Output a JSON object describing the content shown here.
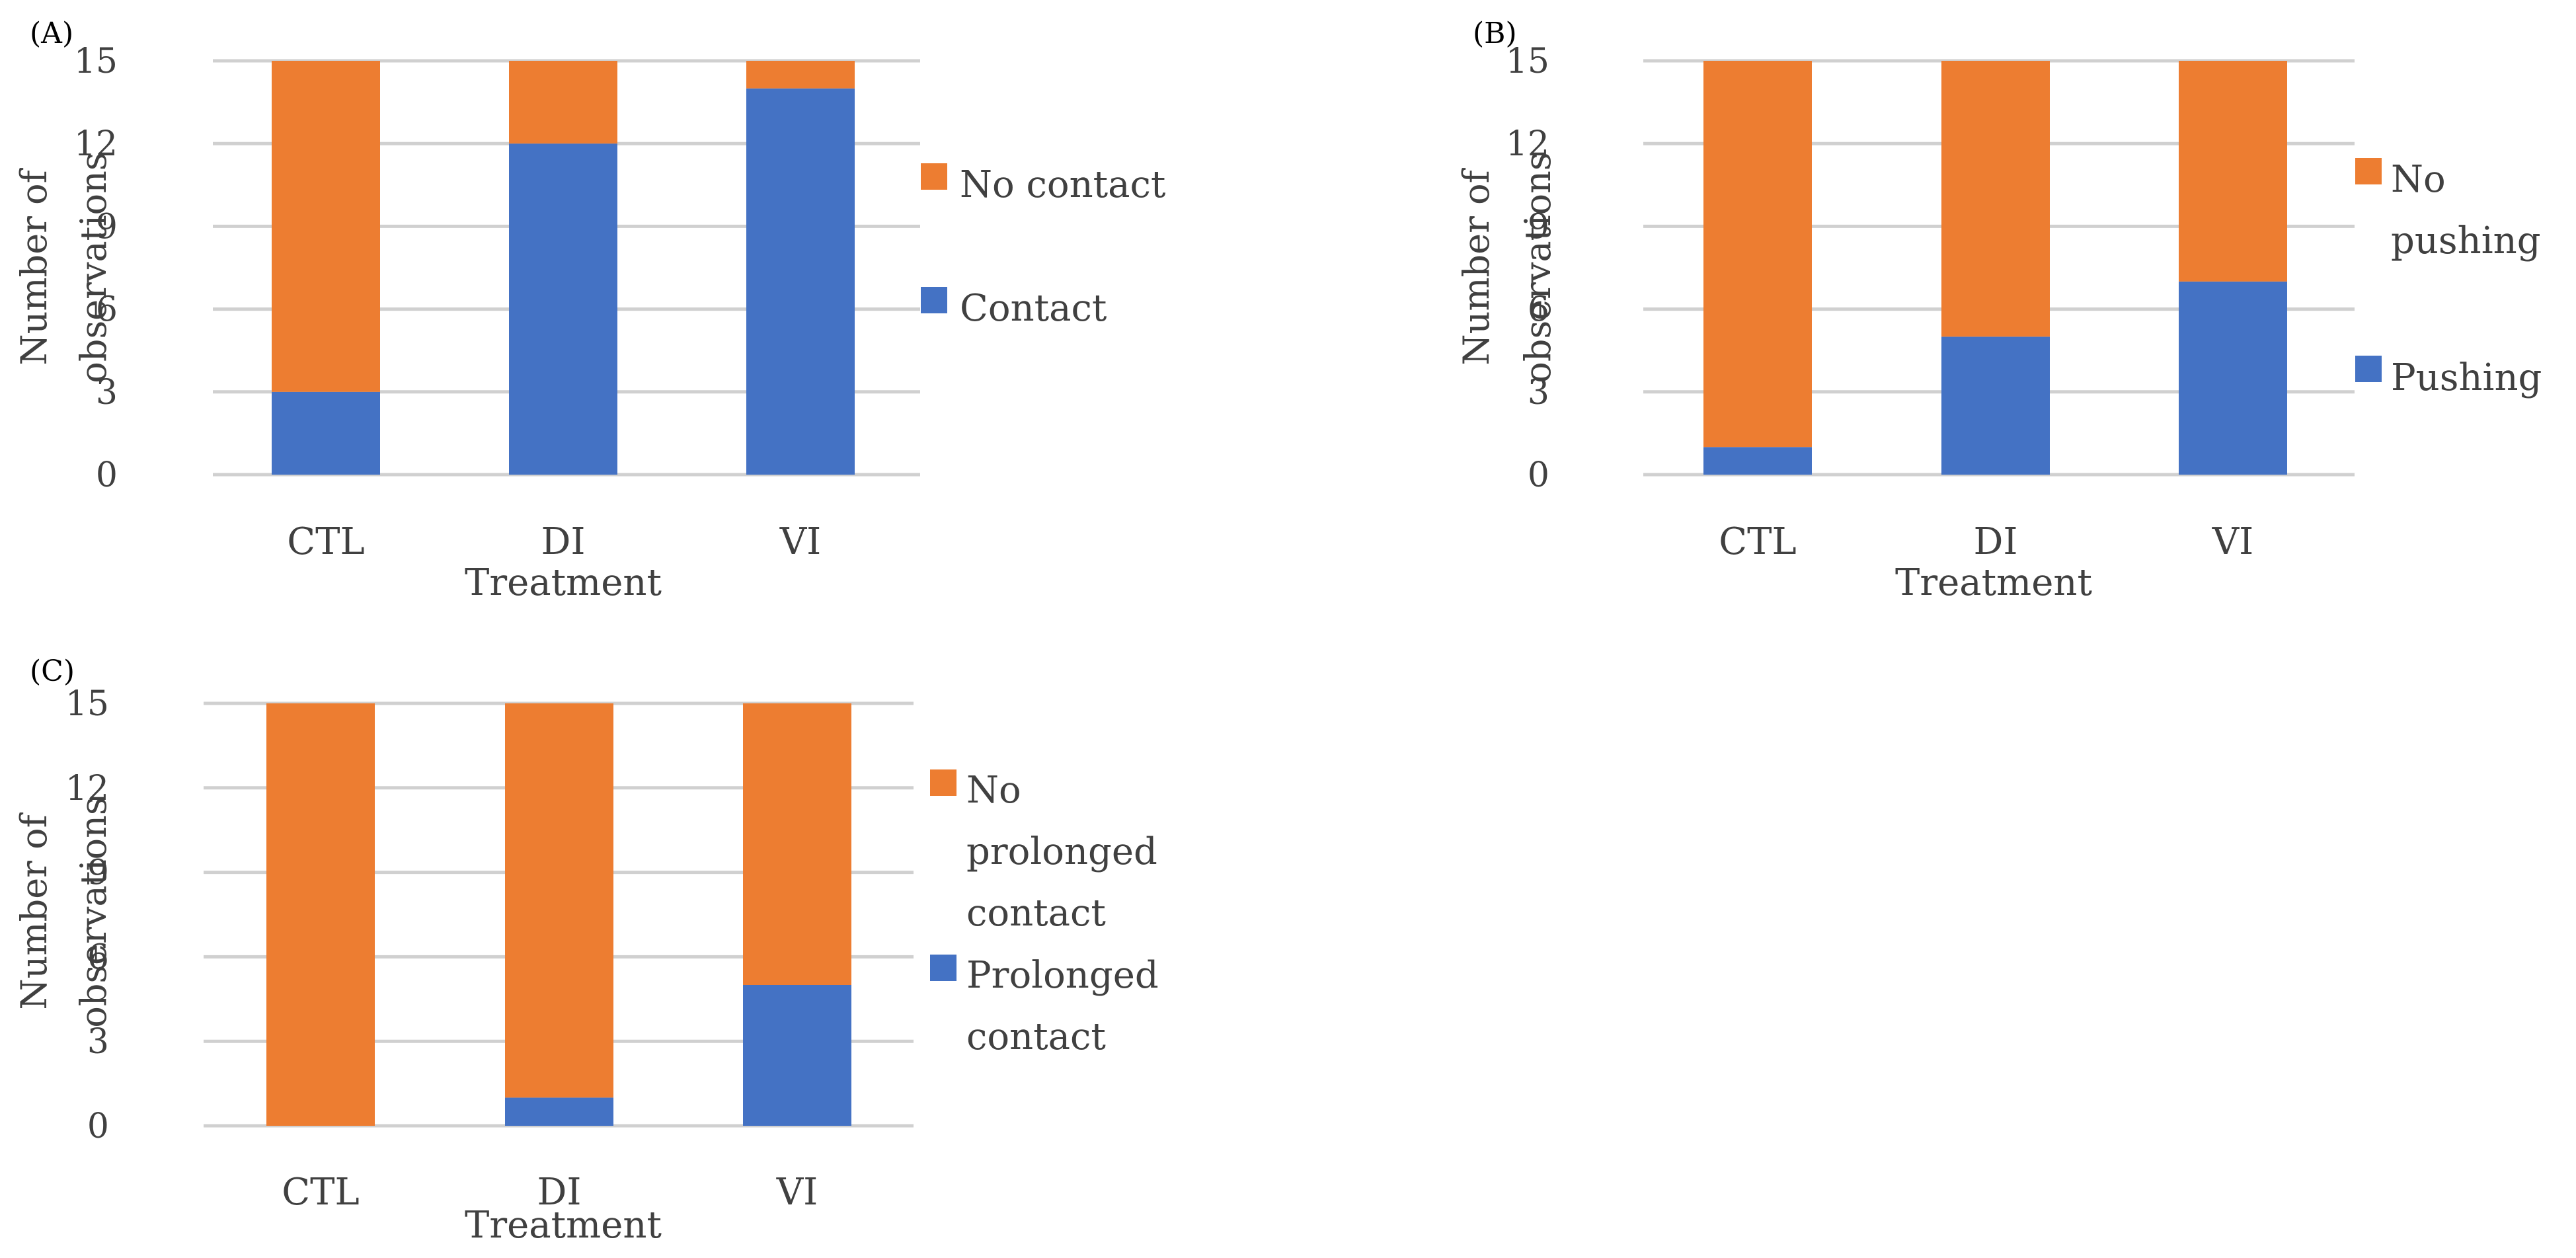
{
  "colors": {
    "series1": "#4472C4",
    "series2": "#ED7D31",
    "grid": "#D0D0D0",
    "text": "#404040",
    "label": "#000000"
  },
  "chart_data": [
    {
      "type": "bar",
      "stacked": true,
      "panel_label": "(A)",
      "title": "",
      "categories": [
        "CTL",
        "DI",
        "VI"
      ],
      "xlabel": "Treatment",
      "ylabel": [
        "Number of",
        "observations"
      ],
      "ylim": [
        0,
        15
      ],
      "yticks": [
        0,
        3,
        6,
        9,
        12,
        15
      ],
      "grid": true,
      "legend_position": "right",
      "series": [
        {
          "name": "Contact",
          "legend_lines": [
            "Contact"
          ],
          "values": [
            3,
            12,
            14
          ]
        },
        {
          "name": "No contact",
          "legend_lines": [
            "No contact"
          ],
          "values": [
            12,
            3,
            1
          ]
        }
      ]
    },
    {
      "type": "bar",
      "stacked": true,
      "panel_label": "(B)",
      "title": "",
      "categories": [
        "CTL",
        "DI",
        "VI"
      ],
      "xlabel": "Treatment",
      "ylabel": [
        "Number of",
        "observations"
      ],
      "ylim": [
        0,
        15
      ],
      "yticks": [
        0,
        3,
        6,
        9,
        12,
        15
      ],
      "grid": true,
      "legend_position": "right",
      "series": [
        {
          "name": "Pushing",
          "legend_lines": [
            "Pushing"
          ],
          "values": [
            1,
            5,
            7
          ]
        },
        {
          "name": "No pushing",
          "legend_lines": [
            "No",
            "pushing"
          ],
          "values": [
            14,
            10,
            8
          ]
        }
      ]
    },
    {
      "type": "bar",
      "stacked": true,
      "panel_label": "(C)",
      "title": "",
      "categories": [
        "CTL",
        "DI",
        "VI"
      ],
      "xlabel": "Treatment",
      "ylabel": [
        "Number of",
        "observations"
      ],
      "ylim": [
        0,
        15
      ],
      "yticks": [
        0,
        3,
        6,
        9,
        12,
        15
      ],
      "grid": true,
      "legend_position": "right",
      "series": [
        {
          "name": "Prolonged contact",
          "legend_lines": [
            "Prolonged",
            "contact"
          ],
          "values": [
            0,
            1,
            5
          ]
        },
        {
          "name": "No prolonged contact",
          "legend_lines": [
            "No",
            "prolonged",
            "contact"
          ],
          "values": [
            15,
            14,
            10
          ]
        }
      ]
    }
  ]
}
